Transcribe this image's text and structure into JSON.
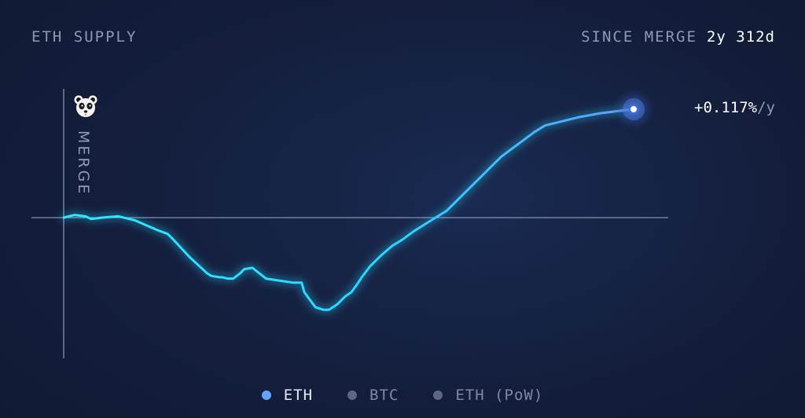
{
  "header": {
    "title": "ETH SUPPLY",
    "since_label": "SINCE MERGE",
    "since_value": "2y 312d"
  },
  "rate": {
    "value": "+0.117%",
    "unit": "/y"
  },
  "merge_label": "MERGE",
  "icons": {
    "merge_marker": "panda-icon"
  },
  "legend": [
    {
      "label": "ETH",
      "active": true
    },
    {
      "label": "BTC",
      "active": false
    },
    {
      "label": "ETH (PoW)",
      "active": false
    }
  ],
  "colors": {
    "background": "#121c36",
    "line_start": "#2ee6ff",
    "line_end": "#5b9dff",
    "eth_dot": "#62a3ff",
    "inactive_dot": "#5d6684",
    "axis": "#8591b0"
  },
  "chart_data": {
    "type": "line",
    "title": "ETH SUPPLY",
    "x_unit": "days since merge",
    "y_unit": "percent change in supply since merge",
    "xlim": [
      0,
      1042
    ],
    "ylim": [
      -0.09,
      0.08
    ],
    "baseline": 0,
    "series": [
      {
        "name": "ETH",
        "x": [
          0,
          20,
          40,
          50,
          70,
          100,
          130,
          170,
          190,
          200,
          230,
          262,
          270,
          285,
          290,
          300,
          310,
          323,
          330,
          345,
          370,
          420,
          435,
          440,
          460,
          475,
          485,
          500,
          515,
          526,
          535,
          545,
          560,
          580,
          600,
          620,
          640,
          660,
          680,
          700,
          720,
          750,
          780,
          800,
          820,
          840,
          860,
          880,
          900,
          940,
          980,
          1000,
          1020,
          1042
        ],
        "y": [
          0,
          0.002,
          0.001,
          -0.001,
          0,
          0.001,
          -0.002,
          -0.009,
          -0.012,
          -0.016,
          -0.029,
          -0.041,
          -0.043,
          -0.044,
          -0.044,
          -0.045,
          -0.045,
          -0.041,
          -0.038,
          -0.037,
          -0.045,
          -0.048,
          -0.048,
          -0.055,
          -0.066,
          -0.068,
          -0.068,
          -0.064,
          -0.058,
          -0.055,
          -0.05,
          -0.044,
          -0.036,
          -0.028,
          -0.021,
          -0.016,
          -0.01,
          -0.005,
          0,
          0.005,
          0.013,
          0.025,
          0.037,
          0.045,
          0.051,
          0.057,
          0.063,
          0.068,
          0.07,
          0.074,
          0.077,
          0.078,
          0.079,
          0.08
        ]
      }
    ]
  }
}
